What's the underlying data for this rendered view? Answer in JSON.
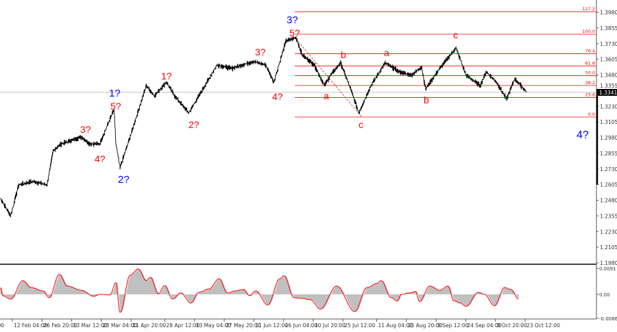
{
  "chart_data": {
    "type": "line",
    "title": "",
    "xlabel": "",
    "ylabel": "",
    "ylim": [
      1.198,
      1.398
    ],
    "y_ticks": [
      "1.3980",
      "1.3855",
      "1.3730",
      "1.3605",
      "1.3480",
      "1.3355",
      "1.3230",
      "1.3105",
      "1.2980",
      "1.2855",
      "1.2730",
      "1.2605",
      "1.2480",
      "1.2355",
      "1.2230",
      "1.2105",
      "1.1980"
    ],
    "x_ticks": [
      {
        "label": "12 Feb 04:00",
        "t": "2025-02-12T04:00"
      },
      {
        "label": "26 Feb 20:00",
        "t": "2025-02-26T20:00"
      },
      {
        "label": "13 Mar 12:00",
        "t": "2025-03-13T12:00"
      },
      {
        "label": "28 Mar 04:00",
        "t": "2025-03-28T04:00"
      },
      {
        "label": "11 Apr 20:00",
        "t": "2025-04-11T20:00"
      },
      {
        "label": "28 Apr 12:00",
        "t": "2025-04-28T12:00"
      },
      {
        "label": "13 May 04:00",
        "t": "2025-05-13T04:00"
      },
      {
        "label": "27 May 20:00",
        "t": "2025-05-27T20:00"
      },
      {
        "label": "11 Jun 12:00",
        "t": "2025-06-11T12:00"
      },
      {
        "label": "26 Jun 04:00",
        "t": "2025-06-26T04:00"
      },
      {
        "label": "10 Jul 20:00",
        "t": "2025-07-10T20:00"
      },
      {
        "label": "25 Jul 12:00",
        "t": "2025-07-25T12:00"
      },
      {
        "label": "11 Aug 04:00",
        "t": "2025-08-11T04:00"
      },
      {
        "label": "25 Aug 20:00",
        "t": "2025-08-25T20:00"
      },
      {
        "label": "9 Sep 12:00",
        "t": "2025-09-09T12:00"
      },
      {
        "label": "24 Sep 04:00",
        "t": "2025-09-24T04:00"
      },
      {
        "label": "8 Oct 20:00",
        "t": "2025-10-08T20:00"
      },
      {
        "label": "23 Oct 12:00",
        "t": "2025-10-23T12:00"
      }
    ],
    "first_tick_partial": ":00",
    "current_price": "1.3341",
    "price_series": [
      [
        "2025-02-05",
        1.2494
      ],
      [
        "2025-02-10",
        1.2357
      ],
      [
        "2025-02-14",
        1.2603
      ],
      [
        "2025-02-21",
        1.263
      ],
      [
        "2025-02-28",
        1.2603
      ],
      [
        "2025-03-03",
        1.2876
      ],
      [
        "2025-03-07",
        1.293
      ],
      [
        "2025-03-17",
        1.2985
      ],
      [
        "2025-03-21",
        1.293
      ],
      [
        "2025-03-26",
        1.293
      ],
      [
        "2025-04-02",
        1.3204
      ],
      [
        "2025-04-03",
        1.293
      ],
      [
        "2025-04-05",
        1.274
      ],
      [
        "2025-04-10",
        1.2985
      ],
      [
        "2025-04-18",
        1.3395
      ],
      [
        "2025-04-22",
        1.3313
      ],
      [
        "2025-04-28",
        1.3423
      ],
      [
        "2025-05-02",
        1.3313
      ],
      [
        "2025-05-09",
        1.3177
      ],
      [
        "2025-05-16",
        1.3368
      ],
      [
        "2025-05-23",
        1.356
      ],
      [
        "2025-05-30",
        1.3532
      ],
      [
        "2025-06-10",
        1.3587
      ],
      [
        "2025-06-16",
        1.356
      ],
      [
        "2025-06-20",
        1.3423
      ],
      [
        "2025-06-26",
        1.3751
      ],
      [
        "2025-07-01",
        1.3778
      ],
      [
        "2025-07-04",
        1.3641
      ],
      [
        "2025-07-10",
        1.356
      ],
      [
        "2025-07-15",
        1.3395
      ],
      [
        "2025-07-18",
        1.3478
      ],
      [
        "2025-07-23",
        1.3576
      ],
      [
        "2025-07-28",
        1.3368
      ],
      [
        "2025-08-01",
        1.3177
      ],
      [
        "2025-08-07",
        1.3395
      ],
      [
        "2025-08-14",
        1.3576
      ],
      [
        "2025-08-21",
        1.3505
      ],
      [
        "2025-08-27",
        1.3478
      ],
      [
        "2025-09-01",
        1.3543
      ],
      [
        "2025-09-03",
        1.3368
      ],
      [
        "2025-09-10",
        1.3532
      ],
      [
        "2025-09-18",
        1.3696
      ],
      [
        "2025-09-23",
        1.3478
      ],
      [
        "2025-09-30",
        1.3395
      ],
      [
        "2025-10-03",
        1.3505
      ],
      [
        "2025-10-08",
        1.3423
      ],
      [
        "2025-10-13",
        1.3286
      ],
      [
        "2025-10-17",
        1.345
      ],
      [
        "2025-10-23",
        1.3341
      ]
    ],
    "fibonacci": {
      "color": "#ff0000",
      "levels": [
        {
          "label": "127.2",
          "price": 1.3985
        },
        {
          "label": "100.0",
          "price": 1.3805
        },
        {
          "label": "76.4",
          "price": 1.3649
        },
        {
          "label": "61.8",
          "price": 1.3552
        },
        {
          "label": "50.0",
          "price": 1.3475
        },
        {
          "label": "38.2",
          "price": 1.3396
        },
        {
          "label": "23.6",
          "price": 1.33
        },
        {
          "label": "0.0",
          "price": 1.3144
        }
      ]
    },
    "oscillator": {
      "ylim": [
        -0.00862,
        0.0091
      ],
      "y_ticks": [
        "0.0091",
        "0.00",
        "-0.00862"
      ],
      "line_color": "#ff0000",
      "fill_color": "#c0c0c0",
      "values": [
        [
          "2025-02-05",
          0.0024
        ],
        [
          "2025-02-06",
          -0.0005
        ],
        [
          "2025-02-10",
          -0.0017
        ],
        [
          "2025-02-16",
          0.0048
        ],
        [
          "2025-02-20",
          0.0024
        ],
        [
          "2025-02-26",
          0.0012
        ],
        [
          "2025-03-01",
          -0.0012
        ],
        [
          "2025-03-06",
          0.007
        ],
        [
          "2025-03-10",
          0.0029
        ],
        [
          "2025-03-17",
          0.0014
        ],
        [
          "2025-03-23",
          -0.0007
        ],
        [
          "2025-03-26",
          0.0
        ],
        [
          "2025-03-31",
          -0.0002
        ],
        [
          "2025-04-03",
          0.0041
        ],
        [
          "2025-04-05",
          -0.0065
        ],
        [
          "2025-04-10",
          0.0067
        ],
        [
          "2025-04-14",
          0.0089
        ],
        [
          "2025-04-18",
          0.0048
        ],
        [
          "2025-04-20",
          0.006
        ],
        [
          "2025-04-24",
          0.0002
        ],
        [
          "2025-04-27",
          0.0031
        ],
        [
          "2025-05-01",
          -0.0017
        ],
        [
          "2025-05-05",
          0.0005
        ],
        [
          "2025-05-10",
          -0.0031
        ],
        [
          "2025-05-14",
          0.0007
        ],
        [
          "2025-05-19",
          0.0019
        ],
        [
          "2025-05-24",
          0.0055
        ],
        [
          "2025-05-28",
          0.0005
        ],
        [
          "2025-06-01",
          0.0012
        ],
        [
          "2025-06-05",
          0.0017
        ],
        [
          "2025-06-08",
          -0.0005
        ],
        [
          "2025-06-11",
          0.0012
        ],
        [
          "2025-06-17",
          -0.0038
        ],
        [
          "2025-06-23",
          0.0055
        ],
        [
          "2025-06-25",
          0.0065
        ],
        [
          "2025-06-30",
          -0.0012
        ],
        [
          "2025-07-03",
          -0.0014
        ],
        [
          "2025-07-08",
          -0.0019
        ],
        [
          "2025-07-13",
          -0.0053
        ],
        [
          "2025-07-21",
          0.0029
        ],
        [
          "2025-07-30",
          -0.0062
        ],
        [
          "2025-08-05",
          0.0024
        ],
        [
          "2025-08-10",
          0.0038
        ],
        [
          "2025-08-12",
          0.0048
        ],
        [
          "2025-08-17",
          -0.0012
        ],
        [
          "2025-08-20",
          -0.0024
        ],
        [
          "2025-08-22",
          0.0
        ],
        [
          "2025-08-26",
          0.0005
        ],
        [
          "2025-08-29",
          0.001
        ],
        [
          "2025-08-31",
          -0.0026
        ],
        [
          "2025-09-05",
          0.0029
        ],
        [
          "2025-09-10",
          0.0014
        ],
        [
          "2025-09-14",
          0.0029
        ],
        [
          "2025-09-17",
          -0.0024
        ],
        [
          "2025-09-20",
          -0.0031
        ],
        [
          "2025-09-23",
          -0.0043
        ],
        [
          "2025-09-29",
          0.0007
        ],
        [
          "2025-10-02",
          0.0
        ],
        [
          "2025-10-07",
          -0.0041
        ],
        [
          "2025-10-12",
          0.0024
        ],
        [
          "2025-10-15",
          0.0017
        ],
        [
          "2025-10-19",
          -0.0017
        ]
      ]
    },
    "wave_labels": [
      {
        "text": "3?",
        "color": "blue"
      },
      {
        "text": "5?",
        "color": "red"
      },
      {
        "text": "1?",
        "color": "blue"
      },
      {
        "text": "5?",
        "color": "red"
      },
      {
        "text": "3?",
        "color": "red"
      },
      {
        "text": "4?",
        "color": "red"
      },
      {
        "text": "2?",
        "color": "blue"
      },
      {
        "text": "1?",
        "color": "red"
      },
      {
        "text": "2?",
        "color": "red"
      },
      {
        "text": "3?",
        "color": "red"
      },
      {
        "text": "4?",
        "color": "red"
      },
      {
        "text": "a",
        "color": "red"
      },
      {
        "text": "b",
        "color": "red"
      },
      {
        "text": "c",
        "color": "red"
      },
      {
        "text": "a",
        "color": "red"
      },
      {
        "text": "b",
        "color": "red"
      },
      {
        "text": "c",
        "color": "red"
      },
      {
        "text": "4?",
        "color": "blue"
      }
    ]
  }
}
